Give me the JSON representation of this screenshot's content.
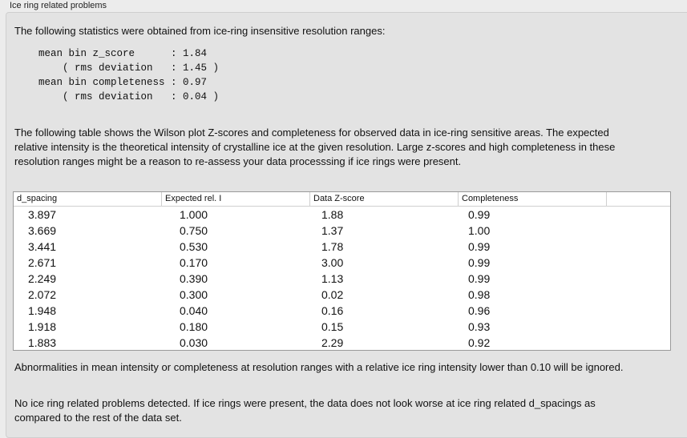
{
  "section_title": "Ice ring related problems",
  "intro": "The following statistics were obtained from ice-ring insensitive resolution ranges:",
  "stats": "mean bin z_score      : 1.84\n    ( rms deviation   : 1.45 )\nmean bin completeness : 0.97\n    ( rms deviation   : 0.04 )",
  "table_intro": "The following table shows the Wilson plot Z-scores and completeness for observed data in ice-ring sensitive areas. The expected relative intensity is the theoretical intensity of crystalline ice at the given resolution. Large z-scores and high completeness in these resolution ranges might be a reason to re-assess your data processsing if ice rings were present.",
  "table": {
    "headers": [
      "d_spacing",
      "Expected rel. I",
      "Data Z-score",
      "Completeness"
    ],
    "rows": [
      [
        "3.897",
        "1.000",
        "1.88",
        "0.99"
      ],
      [
        "3.669",
        "0.750",
        "1.37",
        "1.00"
      ],
      [
        "3.441",
        "0.530",
        "1.78",
        "0.99"
      ],
      [
        "2.671",
        "0.170",
        "3.00",
        "0.99"
      ],
      [
        "2.249",
        "0.390",
        "1.13",
        "0.99"
      ],
      [
        "2.072",
        "0.300",
        "0.02",
        "0.98"
      ],
      [
        "1.948",
        "0.040",
        "0.16",
        "0.96"
      ],
      [
        "1.918",
        "0.180",
        "0.15",
        "0.93"
      ],
      [
        "1.883",
        "0.030",
        "2.29",
        "0.92"
      ]
    ]
  },
  "note": "Abnormalities in mean intensity or completeness at resolution ranges with a relative ice ring intensity lower than 0.10 will be ignored.",
  "conclusion": "No ice ring related problems detected. If ice rings were present, the data does not look worse at ice ring related d_spacings as compared to the rest of the data set."
}
